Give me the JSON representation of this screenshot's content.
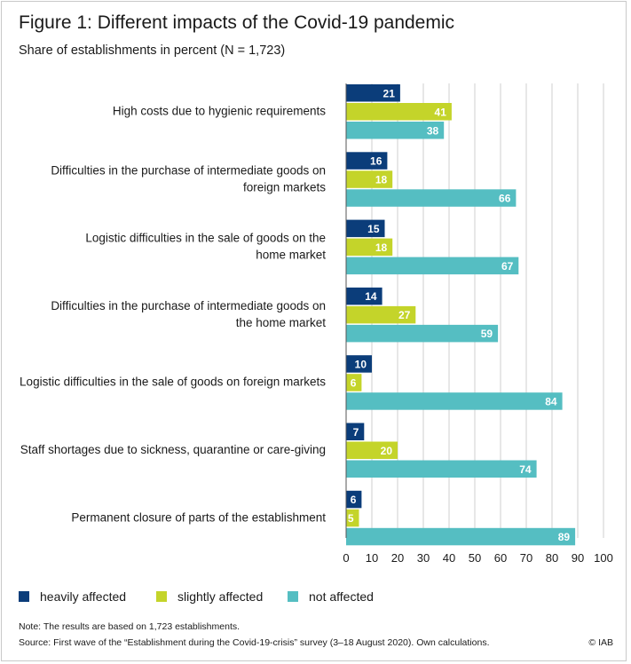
{
  "figure": {
    "title": "Figure 1: Different impacts of the Covid-19 pandemic",
    "subtitle": "Share of establishments in percent (N = 1,723)"
  },
  "colors": {
    "heavily": "#0b3d7a",
    "slightly": "#c4d42a",
    "not": "#55bec2",
    "grid": "#cfcfcf"
  },
  "chart_data": {
    "type": "bar",
    "orientation": "horizontal",
    "categories": [
      [
        "High costs due to hygienic requirements"
      ],
      [
        "Difficulties in the purchase of intermediate goods on",
        "foreign markets"
      ],
      [
        "Logistic difficulties in the sale of goods on the",
        "home market"
      ],
      [
        "Difficulties in the purchase of intermediate goods on",
        "the home market"
      ],
      [
        "Logistic difficulties in the sale of goods on foreign markets"
      ],
      [
        "Staff shortages due to sickness, quarantine or care-giving"
      ],
      [
        "Permanent closure of parts of the establishment"
      ]
    ],
    "series": [
      {
        "name": "heavily affected",
        "values": [
          21,
          16,
          15,
          14,
          10,
          7,
          6
        ]
      },
      {
        "name": "slightly affected",
        "values": [
          41,
          18,
          18,
          27,
          6,
          20,
          5
        ]
      },
      {
        "name": "not affected",
        "values": [
          38,
          66,
          67,
          59,
          84,
          74,
          89
        ]
      }
    ],
    "xlim": [
      0,
      100
    ],
    "xticks": [
      0,
      10,
      20,
      30,
      40,
      50,
      60,
      70,
      80,
      90,
      100
    ],
    "grid": true,
    "legend_position": "bottom-left"
  },
  "footer": {
    "note": "Note: The results are based on 1,723 establishments.",
    "source": "Source: First wave of the “Establishment during the Covid-19-crisis” survey (3–18 August 2020). Own calculations.",
    "copyright": "© IAB"
  }
}
